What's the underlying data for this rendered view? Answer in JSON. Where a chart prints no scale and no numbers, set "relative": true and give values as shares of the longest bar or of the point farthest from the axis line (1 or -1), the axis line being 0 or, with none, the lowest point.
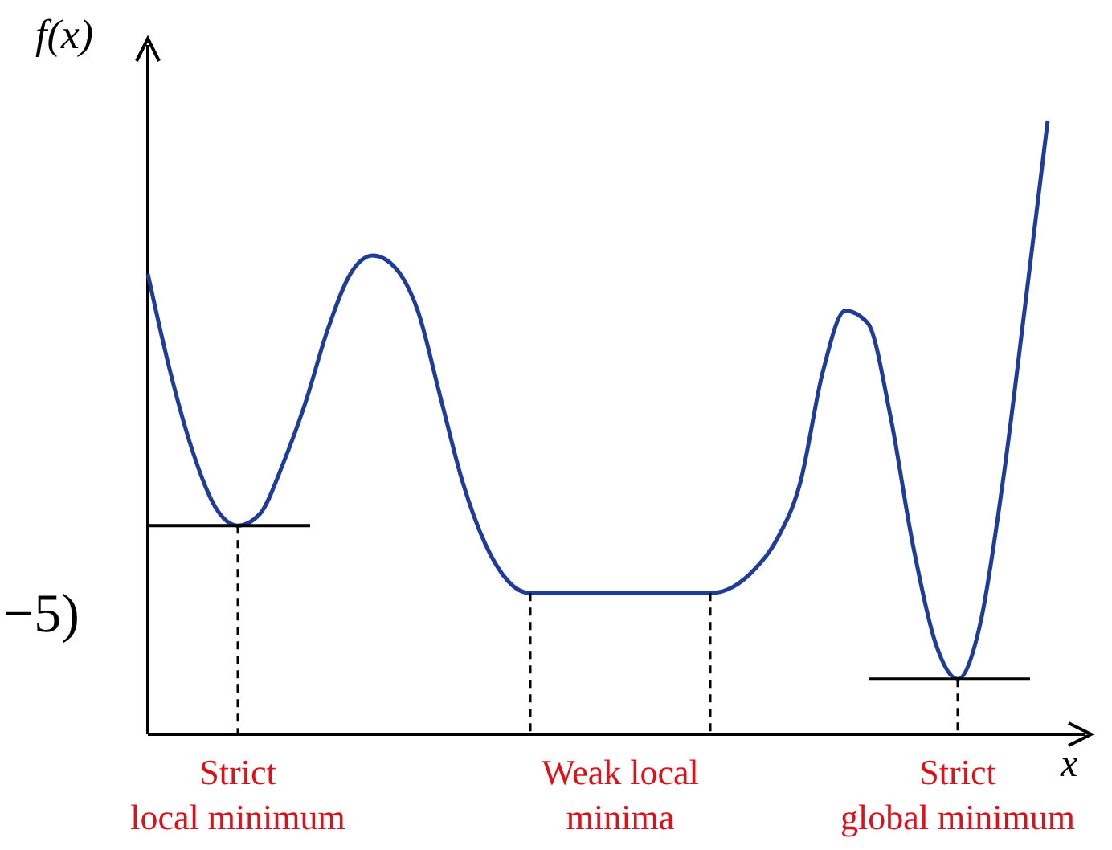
{
  "chart_data": {
    "type": "line",
    "relative": true,
    "xlabel": "x",
    "ylabel": "f(x)",
    "categories": [
      null,
      null,
      null,
      null,
      null,
      null,
      null,
      null,
      null,
      null,
      null,
      null,
      null,
      null,
      null,
      null,
      null,
      null,
      null,
      null,
      null,
      null,
      null,
      null,
      null,
      null,
      null,
      null,
      null,
      null,
      null,
      null,
      null,
      null,
      null,
      null,
      null,
      null,
      null,
      null,
      null
    ],
    "series": [
      {
        "color": "#1f3c99",
        "values": [
          0.75,
          0.59,
          0.46,
          0.37,
          0.34,
          0.36,
          0.44,
          0.54,
          0.66,
          0.75,
          0.78,
          0.76,
          0.69,
          0.55,
          0.41,
          0.31,
          0.25,
          0.23,
          0.23,
          0.23,
          0.23,
          0.23,
          0.23,
          0.23,
          0.23,
          0.23,
          0.24,
          0.27,
          0.32,
          0.41,
          0.59,
          0.69,
          0.67,
          0.52,
          0.31,
          0.15,
          0.09,
          0.18,
          0.41,
          0.7,
          1.0
        ]
      }
    ],
    "annotations": [
      "Strict\nlocal minimum",
      "Weak local\nminima",
      "Strict\nglobal minimum",
      "−5)"
    ],
    "marker": "none"
  }
}
